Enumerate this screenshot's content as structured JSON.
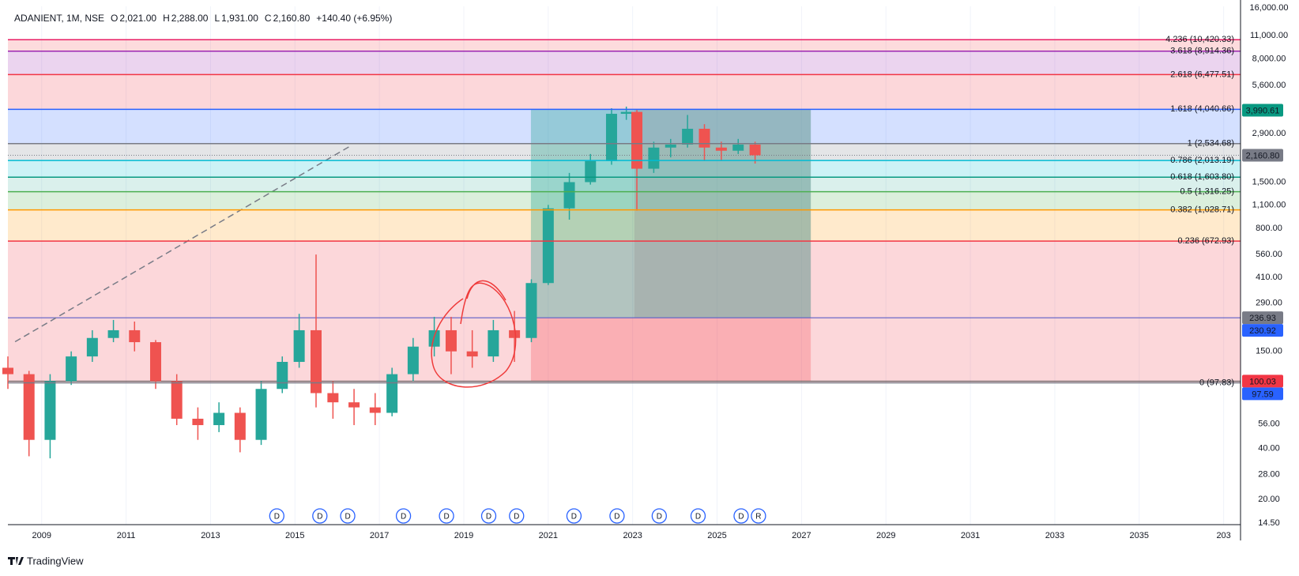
{
  "chart_data": {
    "type": "candlestick",
    "header": {
      "symbol": "ADANIENT, 1M, NSE",
      "ohlc": [
        {
          "key": "O",
          "value": "2,021.00"
        },
        {
          "key": "H",
          "value": "2,288.00"
        },
        {
          "key": "L",
          "value": "1,931.00"
        },
        {
          "key": "C",
          "value": "2,160.80"
        }
      ],
      "change": "+140.40 (+6.95%)"
    },
    "x": [
      2008.2,
      2008.7,
      2009.2,
      2009.7,
      2010.2,
      2010.7,
      2011.2,
      2011.7,
      2012.2,
      2012.7,
      2013.2,
      2013.7,
      2014.2,
      2014.7,
      2015.1,
      2015.5,
      2015.9,
      2016.4,
      2016.9,
      2017.3,
      2017.8,
      2018.3,
      2018.7,
      2019.2,
      2019.7,
      2020.2,
      2020.6,
      2021.0,
      2021.5,
      2022.0,
      2022.5,
      2022.85,
      2023.1,
      2023.5,
      2023.9,
      2024.3,
      2024.7,
      2025.1,
      2025.5,
      2025.9
    ],
    "open": [
      120,
      110,
      45,
      100,
      140,
      180,
      200,
      170,
      100,
      60,
      55,
      65,
      45,
      90,
      130,
      200,
      85,
      75,
      70,
      65,
      110,
      160,
      200,
      150,
      140,
      200,
      180,
      380,
      1050,
      1500,
      2000,
      3800,
      3900,
      1800,
      2400,
      2500,
      3100,
      2400,
      2300,
      2500
    ],
    "high": [
      140,
      115,
      110,
      150,
      200,
      230,
      225,
      175,
      110,
      70,
      75,
      70,
      100,
      140,
      250,
      560,
      100,
      90,
      85,
      120,
      180,
      240,
      240,
      200,
      230,
      260,
      400,
      1100,
      1700,
      2200,
      4100,
      4190,
      4000,
      2600,
      2700,
      3740,
      3300,
      2600,
      2700,
      2600
    ],
    "low": [
      90,
      36,
      35,
      95,
      130,
      170,
      150,
      90,
      55,
      45,
      50,
      38,
      42,
      85,
      120,
      70,
      60,
      55,
      55,
      62,
      100,
      140,
      110,
      120,
      130,
      130,
      170,
      370,
      900,
      1450,
      1900,
      3500,
      1017,
      1700,
      2100,
      2400,
      2000,
      2000,
      2200,
      1931
    ],
    "close": [
      110,
      45,
      100,
      140,
      180,
      200,
      170,
      100,
      60,
      55,
      65,
      45,
      90,
      130,
      200,
      85,
      75,
      70,
      65,
      110,
      160,
      200,
      150,
      140,
      200,
      180,
      380,
      1050,
      1500,
      2000,
      3800,
      3900,
      1800,
      2400,
      2500,
      3100,
      2400,
      2300,
      2500,
      2160.8
    ],
    "up_color": "#26a69a",
    "down_color": "#ef5350",
    "log_scale": true,
    "grid": true,
    "xlim": [
      2008.2,
      2037.4
    ],
    "xticks": [
      2009,
      2011,
      2013,
      2015,
      2017,
      2019,
      2021,
      2023,
      2025,
      2027,
      2029,
      2031,
      2033,
      2035,
      {
        "value": 2037,
        "label": "203"
      }
    ],
    "ylim": [
      14.2,
      16400
    ],
    "yticks": [
      {
        "value": 14.5,
        "label": "14.50"
      },
      {
        "value": 20,
        "label": "20.00"
      },
      {
        "value": 28,
        "label": "28.00"
      },
      {
        "value": 40,
        "label": "40.00"
      },
      {
        "value": 56,
        "label": "56.00"
      },
      {
        "value": 150,
        "label": "150.00"
      },
      {
        "value": 290,
        "label": "290.00"
      },
      {
        "value": 410,
        "label": "410.00"
      },
      {
        "value": 560,
        "label": "560.00"
      },
      {
        "value": 800,
        "label": "800.00"
      },
      {
        "value": 1100,
        "label": "1,100.00"
      },
      {
        "value": 1500,
        "label": "1,500.00"
      },
      {
        "value": 2900,
        "label": "2,900.00"
      },
      {
        "value": 5600,
        "label": "5,600.00"
      },
      {
        "value": 8000,
        "label": "8,000.00"
      },
      {
        "value": 11000,
        "label": "11,000.00"
      },
      {
        "value": 16000,
        "label": "16,000.00"
      }
    ],
    "fib": {
      "start": 2008.2,
      "levels": [
        {
          "price": 10420.33,
          "label": "4.236 (10,420.33)",
          "color": "#e91e63",
          "fill": "rgba(242,54,69,0.18)"
        },
        {
          "price": 8914.36,
          "label": "3.618 (8,914.36)",
          "color": "#9c27b0",
          "fill": "rgba(156,39,176,0.2)"
        },
        {
          "price": 6477.51,
          "label": "2.618 (6,477.51)",
          "color": "#f23645",
          "fill": "rgba(242,54,69,0.2)"
        },
        {
          "price": 4040.66,
          "label": "1.618 (4,040.66)",
          "color": "#2962ff",
          "fill": "rgba(41,98,255,0.2)"
        },
        {
          "price": 2534.68,
          "label": "1 (2,534.68)",
          "color": "#787b86",
          "fill": "rgba(120,123,134,0.2)"
        },
        {
          "price": 2013.19,
          "label": "0.786 (2,013.19)",
          "color": "#00bcd4",
          "fill": "rgba(0,188,212,0.2)"
        },
        {
          "price": 1603.8,
          "label": "0.618 (1,603.80)",
          "color": "#089981",
          "fill": "rgba(8,153,129,0.15)"
        },
        {
          "price": 1316.25,
          "label": "0.5 (1,316.25)",
          "color": "#4caf50",
          "fill": "rgba(76,175,80,0.2)"
        },
        {
          "price": 1028.71,
          "label": "0.382 (1,028.71)",
          "color": "#ff9800",
          "fill": "rgba(255,152,0,0.2)"
        },
        {
          "price": 672.93,
          "label": "0.236 (672.93)",
          "color": "#f23645",
          "fill": "rgba(242,54,69,0.2)"
        },
        {
          "price": 97.83,
          "label": "0 (97.83)",
          "color": "#787b86",
          "fill": null
        }
      ]
    },
    "position": {
      "start": 2020.59,
      "split": 2023.04,
      "end": 2027.22,
      "entry": 236.93,
      "target": 4040.66,
      "stop": 100.03
    },
    "trendline": {
      "x": [
        2008.37,
        2016.35
      ],
      "y": [
        171,
        2483
      ]
    },
    "price_labels": [
      {
        "value": 3990.61,
        "label": "3,990.61",
        "color": "#089981"
      },
      {
        "value": 2160.8,
        "label": "2,160.80",
        "color": "#787b86"
      },
      {
        "value": 236.93,
        "label": "236.93",
        "color": "#787b86"
      },
      {
        "value": 230.92,
        "label": "230.92",
        "color": "#2962ff"
      },
      {
        "value": 100.03,
        "label": "100.03",
        "color": "#f23645"
      },
      {
        "value": 97.59,
        "label": "97.59",
        "color": "#2962ff"
      }
    ],
    "events": {
      "x": [
        2014.57,
        2015.59,
        2016.25,
        2017.57,
        2018.59,
        2019.59,
        2020.25,
        2021.61,
        2022.63,
        2023.63,
        2024.55,
        2025.57,
        2025.98
      ],
      "labels": [
        "D",
        "D",
        "D",
        "D",
        "D",
        "D",
        "D",
        "D",
        "D",
        "D",
        "D",
        "D",
        "R"
      ]
    },
    "brand": "TradingView"
  }
}
